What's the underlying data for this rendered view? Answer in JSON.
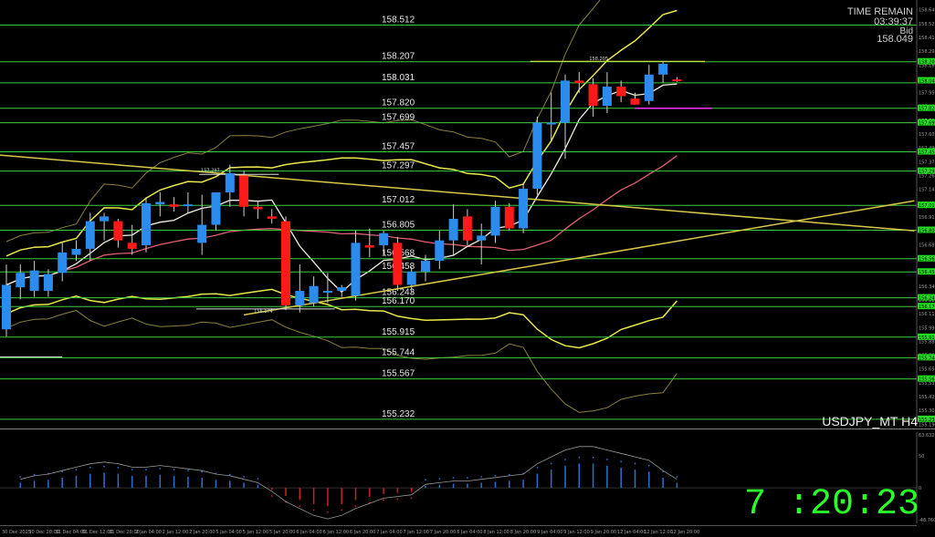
{
  "chart_data": {
    "type": "candlestick",
    "symbol_label": "USDJPY_MT H4",
    "timeframe": "H4",
    "info": {
      "time_remain_label": "TIME REMAIN",
      "time_remain_value": "03:39:37",
      "bid_label": "Bid",
      "bid_value": "158.049"
    },
    "clock": "7 :20:23",
    "ylim": [
      155.17,
      158.66
    ],
    "indicator_ylim": [
      -0.35,
      0.55
    ],
    "colors": {
      "bull": "#2b8cee",
      "bear": "#ff1a1a",
      "level_line": "#3ecc3e",
      "axis_tag": "#22dd22",
      "bollinger_inner": "#e8e84a",
      "bollinger_outer": "#8a8040",
      "ma_fast": "#f2eee0",
      "ma_slow": "#e06070",
      "trendline": "#d8c84a",
      "hist_pos": "#2b6fd6",
      "hist_neg": "#cc2222",
      "signal": "#999999"
    },
    "levels": [
      "158.512",
      "158.207",
      "158.031",
      "157.820",
      "157.699",
      "157.457",
      "157.297",
      "157.012",
      "156.805",
      "156.568",
      "156.458",
      "156.243",
      "156.170",
      "155.915",
      "155.744",
      "155.567",
      "155.232"
    ],
    "annotations": {
      "high_label": "158.205",
      "mid_high_label": "157.297",
      "low_label": "156.174"
    },
    "price_axis_ticks": [
      "158.640",
      "158.525",
      "158.410",
      "158.295",
      "158.180",
      "158.065",
      "157.950",
      "157.835",
      "157.720",
      "157.605",
      "157.490",
      "157.375",
      "157.260",
      "157.145",
      "157.030",
      "156.915",
      "156.800",
      "156.685",
      "156.570",
      "156.455",
      "156.340",
      "156.225",
      "156.110",
      "155.995",
      "155.880",
      "155.765",
      "155.650",
      "155.535",
      "155.420",
      "155.305",
      "155.190"
    ],
    "axis_tags": [
      "158.207",
      "158.049",
      "157.820",
      "157.699",
      "157.457",
      "157.297",
      "157.012",
      "156.805",
      "156.568",
      "156.458",
      "156.243",
      "156.170",
      "155.915",
      "155.744",
      "155.567",
      "155.232"
    ],
    "indicator_axis_ticks": [
      "63.6329",
      "50",
      "0",
      "-48.7606"
    ],
    "time_labels": [
      "30 Dec 2025",
      "30 Dec 20:00",
      "31 Dec 04:00",
      "31 Dec 12:00",
      "31 Dec 20:00",
      "2 Jan 04:00",
      "2 Jan 12:00",
      "2 Jan 20:00",
      "5 Jan 04:00",
      "5 Jan 12:00",
      "5 Jan 20:00",
      "6 Jan 04:00",
      "6 Jan 12:00",
      "6 Jan 20:00",
      "7 Jan 04:00",
      "7 Jan 12:00",
      "7 Jan 20:00",
      "8 Jan 04:00",
      "8 Jan 12:00",
      "8 Jan 20:00",
      "9 Jan 04:00",
      "9 Jan 12:00",
      "9 Jan 20:00",
      "12 Jan 04:00",
      "12 Jan 12:00",
      "12 Jan 20:00"
    ],
    "candles": [
      {
        "t": 0,
        "o": 155.98,
        "h": 156.52,
        "l": 155.92,
        "c": 156.35
      },
      {
        "t": 1,
        "o": 156.33,
        "h": 156.52,
        "l": 156.23,
        "c": 156.45
      },
      {
        "t": 2,
        "o": 156.3,
        "h": 156.55,
        "l": 156.25,
        "c": 156.47
      },
      {
        "t": 3,
        "o": 156.3,
        "h": 156.48,
        "l": 156.25,
        "c": 156.44
      },
      {
        "t": 4,
        "o": 156.45,
        "h": 156.7,
        "l": 156.38,
        "c": 156.62
      },
      {
        "t": 5,
        "o": 156.6,
        "h": 156.72,
        "l": 156.55,
        "c": 156.65
      },
      {
        "t": 6,
        "o": 156.65,
        "h": 156.95,
        "l": 156.55,
        "c": 156.88
      },
      {
        "t": 7,
        "o": 156.88,
        "h": 156.95,
        "l": 156.72,
        "c": 156.92
      },
      {
        "t": 8,
        "o": 156.88,
        "h": 156.9,
        "l": 156.66,
        "c": 156.72
      },
      {
        "t": 9,
        "o": 156.7,
        "h": 156.85,
        "l": 156.6,
        "c": 156.65
      },
      {
        "t": 10,
        "o": 156.68,
        "h": 157.08,
        "l": 156.62,
        "c": 157.03
      },
      {
        "t": 11,
        "o": 157.02,
        "h": 157.12,
        "l": 156.92,
        "c": 157.04
      },
      {
        "t": 12,
        "o": 157.02,
        "h": 157.08,
        "l": 156.96,
        "c": 157.0
      },
      {
        "t": 13,
        "o": 157.02,
        "h": 157.12,
        "l": 156.95,
        "c": 157.02
      },
      {
        "t": 14,
        "o": 156.7,
        "h": 157.1,
        "l": 156.6,
        "c": 156.85
      },
      {
        "t": 15,
        "o": 156.85,
        "h": 157.12,
        "l": 156.8,
        "c": 157.12
      },
      {
        "t": 16,
        "o": 157.12,
        "h": 157.35,
        "l": 157.0,
        "c": 157.28
      },
      {
        "t": 17,
        "o": 157.26,
        "h": 157.3,
        "l": 156.92,
        "c": 157.0
      },
      {
        "t": 18,
        "o": 157.0,
        "h": 157.05,
        "l": 156.9,
        "c": 156.98
      },
      {
        "t": 19,
        "o": 156.92,
        "h": 156.98,
        "l": 156.86,
        "c": 156.9
      },
      {
        "t": 20,
        "o": 156.88,
        "h": 156.92,
        "l": 156.14,
        "c": 156.18
      },
      {
        "t": 21,
        "o": 156.18,
        "h": 156.52,
        "l": 156.12,
        "c": 156.3
      },
      {
        "t": 22,
        "o": 156.2,
        "h": 156.42,
        "l": 156.17,
        "c": 156.34
      },
      {
        "t": 23,
        "o": 156.3,
        "h": 156.45,
        "l": 156.2,
        "c": 156.3
      },
      {
        "t": 24,
        "o": 156.3,
        "h": 156.35,
        "l": 156.25,
        "c": 156.33
      },
      {
        "t": 25,
        "o": 156.26,
        "h": 156.8,
        "l": 156.22,
        "c": 156.7
      },
      {
        "t": 26,
        "o": 156.68,
        "h": 156.82,
        "l": 156.58,
        "c": 156.66
      },
      {
        "t": 27,
        "o": 156.68,
        "h": 156.8,
        "l": 156.6,
        "c": 156.78
      },
      {
        "t": 28,
        "o": 156.7,
        "h": 156.75,
        "l": 156.3,
        "c": 156.35
      },
      {
        "t": 29,
        "o": 156.35,
        "h": 156.5,
        "l": 156.28,
        "c": 156.46
      },
      {
        "t": 30,
        "o": 156.46,
        "h": 156.6,
        "l": 156.38,
        "c": 156.55
      },
      {
        "t": 31,
        "o": 156.55,
        "h": 156.8,
        "l": 156.48,
        "c": 156.72
      },
      {
        "t": 32,
        "o": 156.72,
        "h": 157.02,
        "l": 156.6,
        "c": 156.9
      },
      {
        "t": 33,
        "o": 156.92,
        "h": 156.98,
        "l": 156.68,
        "c": 156.72
      },
      {
        "t": 34,
        "o": 156.72,
        "h": 156.86,
        "l": 156.52,
        "c": 156.76
      },
      {
        "t": 35,
        "o": 156.76,
        "h": 157.05,
        "l": 156.7,
        "c": 157.0
      },
      {
        "t": 36,
        "o": 157.0,
        "h": 157.03,
        "l": 156.8,
        "c": 156.82
      },
      {
        "t": 37,
        "o": 156.82,
        "h": 157.2,
        "l": 156.78,
        "c": 157.15
      },
      {
        "t": 38,
        "o": 157.15,
        "h": 157.75,
        "l": 157.1,
        "c": 157.7
      },
      {
        "t": 39,
        "o": 157.7,
        "h": 157.95,
        "l": 157.55,
        "c": 157.7
      },
      {
        "t": 40,
        "o": 157.7,
        "h": 158.1,
        "l": 157.4,
        "c": 158.05
      },
      {
        "t": 41,
        "o": 158.05,
        "h": 158.12,
        "l": 157.95,
        "c": 158.03
      },
      {
        "t": 42,
        "o": 158.02,
        "h": 158.07,
        "l": 157.75,
        "c": 157.84
      },
      {
        "t": 43,
        "o": 157.84,
        "h": 158.12,
        "l": 157.78,
        "c": 158.0
      },
      {
        "t": 44,
        "o": 158.0,
        "h": 158.05,
        "l": 157.87,
        "c": 157.92
      },
      {
        "t": 45,
        "o": 157.9,
        "h": 157.95,
        "l": 157.85,
        "c": 157.85
      },
      {
        "t": 46,
        "o": 157.88,
        "h": 158.18,
        "l": 157.85,
        "c": 158.1
      },
      {
        "t": 47,
        "o": 158.1,
        "h": 158.21,
        "l": 158.03,
        "c": 158.19
      },
      {
        "t": 48,
        "o": 158.06,
        "h": 158.08,
        "l": 158.04,
        "c": 158.05
      }
    ],
    "indicator": [
      {
        "t": 1,
        "v": 0.05
      },
      {
        "t": 2,
        "v": 0.07
      },
      {
        "t": 3,
        "v": 0.08
      },
      {
        "t": 4,
        "v": 0.1
      },
      {
        "t": 5,
        "v": 0.12
      },
      {
        "t": 6,
        "v": 0.14
      },
      {
        "t": 7,
        "v": 0.15
      },
      {
        "t": 8,
        "v": 0.14
      },
      {
        "t": 9,
        "v": 0.12
      },
      {
        "t": 10,
        "v": 0.12
      },
      {
        "t": 11,
        "v": 0.13
      },
      {
        "t": 12,
        "v": 0.12
      },
      {
        "t": 13,
        "v": 0.11
      },
      {
        "t": 14,
        "v": 0.1
      },
      {
        "t": 15,
        "v": 0.08
      },
      {
        "t": 16,
        "v": 0.07
      },
      {
        "t": 17,
        "v": 0.05
      },
      {
        "t": 18,
        "v": 0.03
      },
      {
        "t": 19,
        "v": -0.02
      },
      {
        "t": 20,
        "v": -0.08
      },
      {
        "t": 21,
        "v": -0.12
      },
      {
        "t": 22,
        "v": -0.16
      },
      {
        "t": 23,
        "v": -0.18
      },
      {
        "t": 24,
        "v": -0.16
      },
      {
        "t": 25,
        "v": -0.12
      },
      {
        "t": 26,
        "v": -0.09
      },
      {
        "t": 27,
        "v": -0.06
      },
      {
        "t": 28,
        "v": -0.05
      },
      {
        "t": 29,
        "v": -0.04
      },
      {
        "t": 30,
        "v": 0.02
      },
      {
        "t": 31,
        "v": 0.03
      },
      {
        "t": 32,
        "v": 0.04
      },
      {
        "t": 33,
        "v": 0.04
      },
      {
        "t": 34,
        "v": 0.05
      },
      {
        "t": 35,
        "v": 0.06
      },
      {
        "t": 36,
        "v": 0.07
      },
      {
        "t": 37,
        "v": 0.08
      },
      {
        "t": 38,
        "v": 0.14
      },
      {
        "t": 39,
        "v": 0.18
      },
      {
        "t": 40,
        "v": 0.22
      },
      {
        "t": 41,
        "v": 0.24
      },
      {
        "t": 42,
        "v": 0.24
      },
      {
        "t": 43,
        "v": 0.22
      },
      {
        "t": 44,
        "v": 0.2
      },
      {
        "t": 45,
        "v": 0.18
      },
      {
        "t": 46,
        "v": 0.16
      },
      {
        "t": 47,
        "v": 0.1
      },
      {
        "t": 48,
        "v": 0.05
      }
    ]
  }
}
